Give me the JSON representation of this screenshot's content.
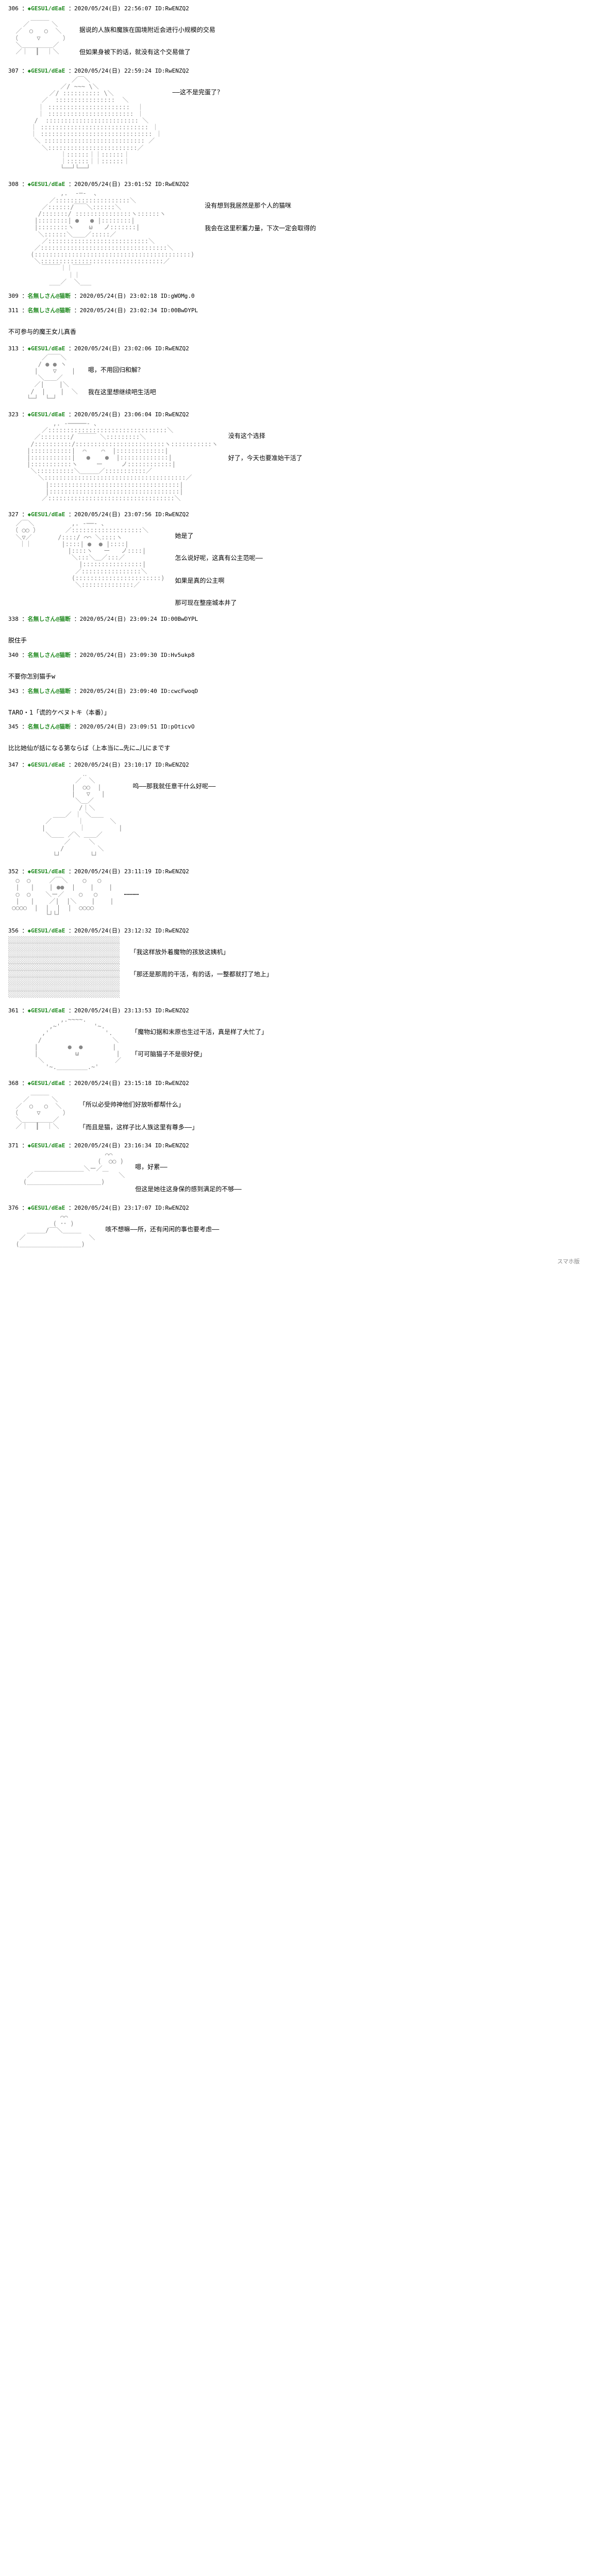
{
  "posts": [
    {
      "num": "306",
      "name": "◆GESU1/dEaE",
      "date": "2020/05/24(日) 22:56:07",
      "id": "ID:RwENZQ2",
      "aa": "face1",
      "txt": [
        "据说的人族和魔族在国境附近会进行小规模的交易",
        "但如果身被下的话，就没有这个交易做了"
      ]
    },
    {
      "num": "307",
      "name": "◆GESU1/dEaE",
      "date": "2020/05/24(日) 22:59:24",
      "id": "ID:RwENZQ2",
      "aa": "cloak",
      "txt": [
        "——这不是完蛋了？"
      ]
    },
    {
      "num": "308",
      "name": "◆GESU1/dEaE",
      "date": "2020/05/24(日) 23:01:52",
      "id": "ID:RwENZQ2",
      "aa": "girl1",
      "txt": [
        "没有想到我居然是那个人的猫咪",
        "我会在这里积蓄力量，下次一定会取得的"
      ]
    },
    {
      "num": "309",
      "name": "名無しさん@猫断",
      "date": "2020/05/24(日) 23:02:18",
      "id": "ID:gWOMg.0",
      "txt": []
    },
    {
      "num": "311",
      "name": "名無しさん@猫断",
      "date": "2020/05/24(日) 23:02:34",
      "id": "ID:00BwDYPL",
      "txt": [
        "不可参与的魔王女儿真香"
      ]
    },
    {
      "num": "313",
      "name": "◆GESU1/dEaE",
      "date": "2020/05/24(日) 23:02:06",
      "id": "ID:RwENZQ2",
      "aa": "sit",
      "txt": [
        "嗯，不用回归和解？",
        "我在这里想继续吧生活吧"
      ]
    },
    {
      "num": "323",
      "name": "◆GESU1/dEaE",
      "date": "2020/05/24(日) 23:06:04",
      "id": "ID:RwENZQ2",
      "aa": "girl2",
      "txt": [
        "没有这个选择",
        "好了，今天也要准始干活了"
      ]
    },
    {
      "num": "327",
      "name": "◆GESU1/dEaE",
      "date": "2020/05/24(日) 23:07:56",
      "id": "ID:RwENZQ2",
      "aa": "double",
      "txt": [
        "她是了",
        "怎么说好呢，这真有公主范呢——",
        "如果是真的公主啊",
        "那可现在整座城本井了"
      ]
    },
    {
      "num": "338",
      "name": "名無しさん@猫断",
      "date": "2020/05/24(日) 23:09:24",
      "id": "ID:00BwDYPL",
      "txt": [
        "脱住手"
      ]
    },
    {
      "num": "340",
      "name": "名無しさん@猫断",
      "date": "2020/05/24(日) 23:09:30",
      "id": "ID:Hv5ukp8",
      "txt": [
        "不要你怎别猫手w"
      ]
    },
    {
      "num": "343",
      "name": "名無しさん@猫断",
      "date": "2020/05/24(日) 23:09:40",
      "id": "ID:cwcFwoqD",
      "txt": [
        "TARO・1「谎的ケベヌトキ（本番）」"
      ]
    },
    {
      "num": "345",
      "name": "名無しさん@猫断",
      "date": "2020/05/24(日) 23:09:51",
      "id": "ID:pOticvO",
      "txt": [
        "比比她仙が話になる第ならば（上本当に…先に…儿にまです"
      ]
    },
    {
      "num": "347",
      "name": "◆GESU1/dEaE",
      "date": "2020/05/24(日) 23:10:17",
      "id": "ID:RwENZQ2",
      "aa": "spread",
      "txt": [
        "呜——那我就任意干什么好呢——"
      ]
    },
    {
      "num": "352",
      "name": "◆GESU1/dEaE",
      "date": "2020/05/24(日) 23:11:19",
      "id": "ID:RwENZQ2",
      "aa": "crowd",
      "txt": [
        "…………"
      ]
    },
    {
      "num": "356",
      "name": "◆GESU1/dEaE",
      "date": "2020/05/24(日) 23:12:32",
      "id": "ID:RwENZQ2",
      "aa": "village",
      "txt": [
        "「我这样放外着魔物的孩放这姨机」",
        "「那还是那周的干活，有的话，一整都就打了地上」"
      ]
    },
    {
      "num": "361",
      "name": "◆GESU1/dEaE",
      "date": "2020/05/24(日) 23:13:53",
      "id": "ID:RwENZQ2",
      "aa": "slime",
      "txt": [
        "「魔物幻据和末原也生过干活，真是样了大忙了」",
        "「可可脑猫子不是很好使」"
      ]
    },
    {
      "num": "368",
      "name": "◆GESU1/dEaE",
      "date": "2020/05/24(日) 23:15:18",
      "id": "ID:RwENZQ2",
      "aa": "face2",
      "txt": [
        "「所以必受帅神他们好放听都帮什么」",
        "「而且是猫，这样子比人族这里有尊多——」"
      ]
    },
    {
      "num": "371",
      "name": "◆GESU1/dEaE",
      "date": "2020/05/24(日) 23:16:34",
      "id": "ID:RwENZQ2",
      "aa": "lie",
      "txt": [
        "嗯，好累——",
        "但这是她往这身保的感到满足的不够——"
      ]
    },
    {
      "num": "376",
      "name": "◆GESU1/dEaE",
      "date": "2020/05/24(日) 23:17:07",
      "id": "ID:RwENZQ2",
      "aa": "lie2",
      "txt": [
        "咳不想嘛——所，还有闲闲的事也要考虑——"
      ]
    }
  ],
  "aa_art": {
    "face1": "      ＿＿＿\n    ／      ＼\n  ／  ○   ○  ＼\n （     ▽      ）\n  ＼＿＿＿＿＿／\n  ／｜  ┃  ｜＼",
    "cloak": "                 ／￣＼\n              ／/ ~~~ \\＼\n           ／/ :::::::::: \\＼\n         ／  ::::::::::::::::  ＼\n        ｜ ::::::::::::::::::::::  ｜\n        ｜ ::::::::::::::::::::::: ｜\n       /  ::::::::::::::::::::::::: ＼\n      ｜ ::::::::::::::::::::::::::::: ｜\n      ｜ :::::::::::::::::::::::::::::: ｜\n       ＼ ::::::::::::::::::::::::::: ／\n         ＼::::::::::::::::::::::::／\n              ｜::::::｜｜::::::｜\n              ｜::::::｜｜::::::｜\n              └──┘└──┘",
    "girl1": "              ,.  -─-  、\n           ／::::::::::::::::::::＼\n         ／::::::/￣￣＼::::::＼\n        /:::::::/ :::::::::::::::ヽ::::::ヽ\n       |::::::::| ●   ● |::::::::|\n       |::::::::ヽ    ω   ノ:::::::|\n        ＼::::::＼＿＿／:::::／\n         ／:::::::::::::::::::::::::::＼\n       ／::::::::::::::::::::::::::::::::::＼\n      (::::::::::::::::::::::::::::::::::::::::::)\n       ＼:::::::::::::::::::::::::::::::::／\n         ￣￣￣｜｜￣￣￣\n                ｜｜\n           ___／  ＼___",
    "sit": "         ／￣￣＼\n        / ● ● ヽ\n       |    ▽    |\n        ＼＿＿／\n       ／|    |＼\n      /  |    |  ＼\n     └─┘  └─┘",
    "girl2": "            ,. -─────- 、\n         ／::::::::::::::::::::::::::::::::＼\n       ／::::::::/ ￣￣￣ ＼:::::::::＼\n      /::::::::::/::::::::::::::::::::::::ヽ:::::::::::ヽ\n     |:::::::::::|  ⌒    ⌒  |:::::::::::::|\n     |:::::::::::|   ●    ●  |:::::::::::::|\n     |:::::::::::ヽ     ー     ノ::::::::::::|\n      ＼::::::::::＼＿＿＿／:::::::::::／\n        ＼::::::::::::::::::::::::::::::::::::::／\n          |:::::::::::::::::::::::::::::::::::|\n          |:::::::::::::::::::::::::::::::::::|\n         ／::::::::::::::::::::::::::::::::::＼",
    "double": "  ／￣＼          ,. -──- 、\n （ ○○ ）       ／:::::::::::::::::::＼\n  ＼▽／       /::::/ ⌒⌒ ＼::::ヽ\n   ｜｜        |::::| ●  ● |::::|\n                |::::ヽ   ー   ノ::::|\n                 ＼:::＼＿／:::／\n                   |::::::::::::::::|\n                  ／::::::::::::::::＼\n                 (:::::::::::::::::::::::)\n                  ＼::::::::::::::／",
    "spread": "                    ‥\n                  ／  ＼\n                 |  ○○  |\n                 |   ▽   |\n                  ＼＿／\n                   /｜＼\n            ＿＿／ ｜ ＼＿＿\n          ／       ｜       ＼\n         |         ｜         |\n          ＼＿＿ ／＼ ＿＿／\n               ／     ＼\n              /         ＼\n            └┘        └┘",
    "crowd": "  ○  ○     ／￣＼    ○   ○\n  |   |    | ●●  |    |    |\n  ○  ○    ＼ー／    ○   ○\n  |   |    ／|  |＼    |    |\n ○○○○  |  |  |  |  ○○○○\n          └┘└┘",
    "village": "░░░░░░░░░░░░░░░░░░░░░░░░░░░░░░\n░░░░░░░░░░░░░░░░░░░░░░░░░░░░░░\n░░░░░░░░░░░░░░░░░░░░░░░░░░░░░░\n░░░░░░░░░░░░░░░░░░░░░░░░░░░░░░\n░░░░░░░░░░░░░░░░░░░░░░░░░░░░░░\n░░░░░░░░░░░░░░░░░░░░░░░░░░░░░░\n░░░░░░░░░░░░░░░░░░░░░░░░░░░░░░\n░░░░░░░░░░░░░░░░░░░░░░░░░░░░░░\n░░░░░░░░░░░░░░░░░░░░░░░░░░░░░░",
    "slime": "              ,.~~~~.\n           ,~'         '~.\n         ,'               '.\n        /                   ＼\n       |        ●  ●        |\n       |          ω          |\n        ＼                   ／\n          '~.＿＿＿＿＿.~'",
    "face2": "      ＿＿＿\n    ／      ＼\n  ／  ○   ○  ＼\n （     ▽      ）\n  ＼＿＿＿＿＿／\n  ／｜  ┃  ｜＼",
    "lie": "                          ⌒⌒\n                        (  ○○ )\n       ＿＿＿＿＿＿＿＿＼ー／＿\n     ／                       ＼\n    (＿＿＿＿＿＿＿＿＿＿＿＿)",
    "lie2": "              ⌒⌒\n            ( ･･ )\n     ＿＿＿/‾‾＼＿＿＿\n   ／                 ＼\n  (＿＿＿＿＿＿＿＿＿＿)"
  },
  "footer": "スマホ版"
}
